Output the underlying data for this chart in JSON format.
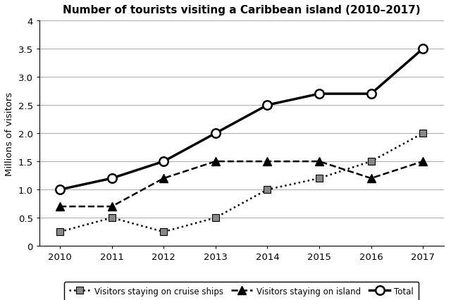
{
  "title": "Number of tourists visiting a Caribbean island (2010–2017)",
  "ylabel": "Millions of visitors",
  "years": [
    2010,
    2011,
    2012,
    2013,
    2014,
    2015,
    2016,
    2017
  ],
  "cruise_ships": [
    0.25,
    0.5,
    0.25,
    0.5,
    1.0,
    1.2,
    1.5,
    2.0
  ],
  "on_island": [
    0.7,
    0.7,
    1.2,
    1.5,
    1.5,
    1.5,
    1.2,
    1.5
  ],
  "total": [
    1.0,
    1.2,
    1.5,
    2.0,
    2.5,
    2.7,
    2.7,
    3.5
  ],
  "ylim": [
    0,
    4
  ],
  "yticks": [
    0,
    0.5,
    1.0,
    1.5,
    2.0,
    2.5,
    3.0,
    3.5,
    4.0
  ],
  "ytick_labels": [
    "0",
    "0.5",
    "1.0",
    "1.5",
    "2.0",
    "2.5",
    "3.0",
    "3.5",
    "4"
  ],
  "legend_labels": [
    "Visitors staying on cruise ships",
    "Visitors staying on island",
    "Total"
  ],
  "background_color": "#ffffff",
  "line_color": "#000000",
  "grid_color": "#aaaaaa",
  "marker_gray": "#888888"
}
